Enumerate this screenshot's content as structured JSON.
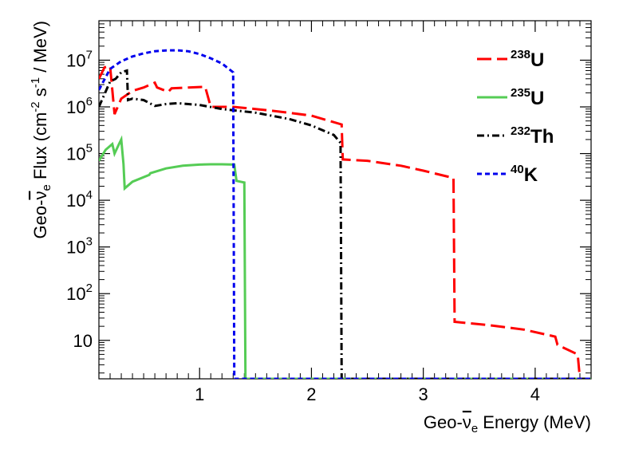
{
  "chart_data": {
    "type": "line",
    "title": "",
    "xlabel": {
      "prefix": "Geo-",
      "nu": "ν",
      "sub": "e",
      "suffix": " Energy (MeV)"
    },
    "ylabel": {
      "prefix": "Geo-",
      "nu": "ν",
      "sub": "e",
      "mid": " Flux (cm",
      "sup1": "-2",
      "mid2": " s",
      "sup2": "-1",
      "suffix": " / MeV)"
    },
    "xlim": [
      0.1,
      4.5
    ],
    "ylim": [
      1.5,
      70000000
    ],
    "yscale": "log",
    "grid": false,
    "legend_position": "top-right",
    "x_ticks": [
      {
        "value": 1,
        "label": "1"
      },
      {
        "value": 2,
        "label": "2"
      },
      {
        "value": 3,
        "label": "3"
      },
      {
        "value": 4,
        "label": "4"
      }
    ],
    "y_ticks": [
      {
        "value": 10,
        "base": "10",
        "exp": ""
      },
      {
        "value": 100,
        "base": "10",
        "exp": "2"
      },
      {
        "value": 1000,
        "base": "10",
        "exp": "3"
      },
      {
        "value": 10000,
        "base": "10",
        "exp": "4"
      },
      {
        "value": 100000,
        "base": "10",
        "exp": "5"
      },
      {
        "value": 1000000,
        "base": "10",
        "exp": "6"
      },
      {
        "value": 10000000,
        "base": "10",
        "exp": "7"
      }
    ],
    "series": [
      {
        "name": "U-238",
        "sup": "238",
        "base": "U",
        "color": "#ff0000",
        "dash": "18,7",
        "points": [
          [
            0.1,
            4000000
          ],
          [
            0.15,
            7000000
          ],
          [
            0.2,
            7500000
          ],
          [
            0.24,
            700000
          ],
          [
            0.3,
            1500000
          ],
          [
            0.4,
            2200000
          ],
          [
            0.5,
            2600000
          ],
          [
            0.6,
            3300000
          ],
          [
            0.62,
            2600000
          ],
          [
            0.72,
            2100000
          ],
          [
            0.75,
            2500000
          ],
          [
            0.9,
            2600000
          ],
          [
            1.05,
            2700000
          ],
          [
            1.1,
            1000000
          ],
          [
            1.3,
            1000000
          ],
          [
            1.5,
            900000
          ],
          [
            1.7,
            800000
          ],
          [
            2.0,
            650000
          ],
          [
            2.27,
            420000
          ],
          [
            2.28,
            75000
          ],
          [
            2.5,
            70000
          ],
          [
            2.8,
            55000
          ],
          [
            3.0,
            43000
          ],
          [
            3.27,
            30000
          ],
          [
            3.28,
            25
          ],
          [
            3.6,
            21
          ],
          [
            3.9,
            17
          ],
          [
            4.18,
            12
          ],
          [
            4.2,
            8
          ],
          [
            4.38,
            5
          ],
          [
            4.4,
            1.5
          ]
        ]
      },
      {
        "name": "U-235",
        "sup": "235",
        "base": "U",
        "color": "#55cc55",
        "dash": "",
        "points": [
          [
            0.1,
            70000
          ],
          [
            0.16,
            120000
          ],
          [
            0.22,
            160000
          ],
          [
            0.24,
            100000
          ],
          [
            0.28,
            160000
          ],
          [
            0.3,
            200000
          ],
          [
            0.32,
            60000
          ],
          [
            0.33,
            18000
          ],
          [
            0.4,
            25000
          ],
          [
            0.55,
            35000
          ],
          [
            0.56,
            38000
          ],
          [
            0.7,
            48000
          ],
          [
            0.85,
            55000
          ],
          [
            1.0,
            58000
          ],
          [
            1.1,
            59000
          ],
          [
            1.2,
            59000
          ],
          [
            1.31,
            58000
          ],
          [
            1.33,
            26000
          ],
          [
            1.4,
            24000
          ],
          [
            1.41,
            1.5
          ],
          [
            4.5,
            1.5
          ]
        ]
      },
      {
        "name": "Th-232",
        "sup": "232",
        "base": "Th",
        "color": "#000000",
        "dash": "9,4,2,4",
        "points": [
          [
            0.1,
            1000000
          ],
          [
            0.2,
            3500000
          ],
          [
            0.25,
            4000000
          ],
          [
            0.3,
            5500000
          ],
          [
            0.35,
            6000000
          ],
          [
            0.36,
            1400000
          ],
          [
            0.4,
            1500000
          ],
          [
            0.5,
            1400000
          ],
          [
            0.6,
            1050000
          ],
          [
            0.7,
            1150000
          ],
          [
            0.8,
            1200000
          ],
          [
            0.9,
            1150000
          ],
          [
            1.0,
            1100000
          ],
          [
            1.2,
            900000
          ],
          [
            1.5,
            750000
          ],
          [
            1.8,
            550000
          ],
          [
            2.0,
            400000
          ],
          [
            2.2,
            250000
          ],
          [
            2.26,
            170000
          ],
          [
            2.27,
            1.5
          ],
          [
            4.5,
            1.5
          ]
        ]
      },
      {
        "name": "K-40",
        "sup": "40",
        "base": "K",
        "color": "#0000ee",
        "dash": "6,4",
        "points": [
          [
            0.1,
            2300000
          ],
          [
            0.2,
            6500000
          ],
          [
            0.3,
            9500000
          ],
          [
            0.4,
            12000000
          ],
          [
            0.5,
            14000000
          ],
          [
            0.6,
            15500000
          ],
          [
            0.7,
            16200000
          ],
          [
            0.8,
            16300000
          ],
          [
            0.9,
            15500000
          ],
          [
            1.0,
            13500000
          ],
          [
            1.1,
            11000000
          ],
          [
            1.2,
            8500000
          ],
          [
            1.3,
            5500000
          ],
          [
            1.31,
            1.5
          ],
          [
            4.5,
            1.5
          ]
        ]
      }
    ]
  }
}
